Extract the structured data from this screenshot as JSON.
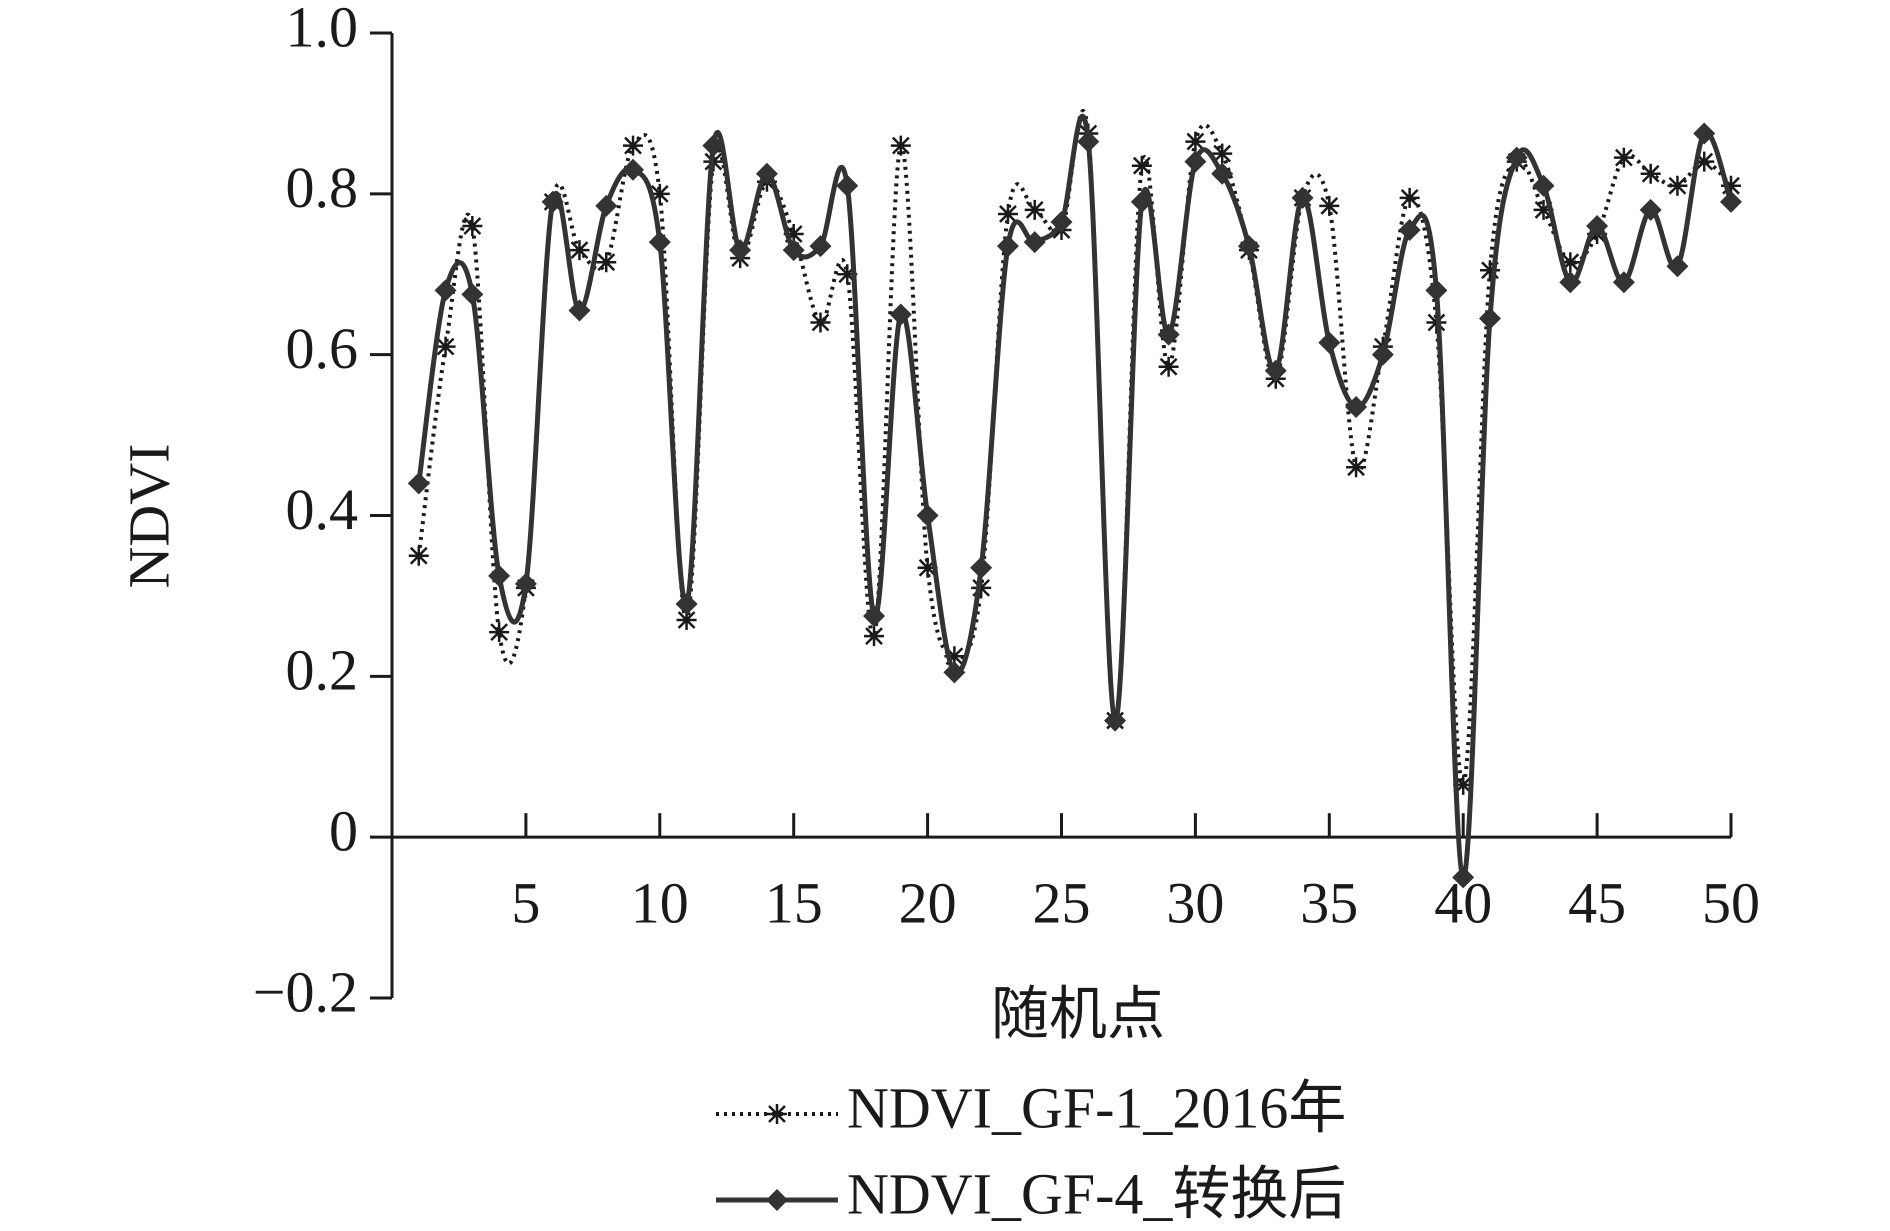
{
  "chart_data": {
    "type": "line",
    "x_label": "随机点",
    "y_label": "NDVI",
    "x": [
      1,
      2,
      3,
      4,
      5,
      6,
      7,
      8,
      9,
      10,
      11,
      12,
      13,
      14,
      15,
      16,
      17,
      18,
      19,
      20,
      21,
      22,
      23,
      24,
      25,
      26,
      27,
      28,
      29,
      30,
      31,
      32,
      33,
      34,
      35,
      36,
      37,
      38,
      39,
      40,
      41,
      42,
      43,
      44,
      45,
      46,
      47,
      48,
      49,
      50
    ],
    "series": [
      {
        "name": "NDVI_GF-1_2016年",
        "color": "#1a1a1a",
        "line_style": "dotted",
        "marker": "asterisk",
        "values": [
          0.35,
          0.61,
          0.76,
          0.255,
          0.31,
          0.79,
          0.73,
          0.715,
          0.86,
          0.8,
          0.27,
          0.84,
          0.72,
          0.815,
          0.75,
          0.64,
          0.7,
          0.25,
          0.86,
          0.335,
          0.225,
          0.31,
          0.775,
          0.78,
          0.755,
          0.875,
          0.145,
          0.835,
          0.585,
          0.865,
          0.85,
          0.73,
          0.57,
          0.795,
          0.785,
          0.46,
          0.61,
          0.795,
          0.64,
          0.065,
          0.705,
          0.84,
          0.78,
          0.715,
          0.75,
          0.845,
          0.825,
          0.81,
          0.84,
          0.81
        ]
      },
      {
        "name": "NDVI_GF-4_转换后",
        "color": "#333333",
        "line_style": "solid",
        "marker": "diamond",
        "values": [
          0.44,
          0.68,
          0.675,
          0.325,
          0.315,
          0.79,
          0.655,
          0.785,
          0.83,
          0.74,
          0.29,
          0.86,
          0.73,
          0.825,
          0.73,
          0.735,
          0.81,
          0.275,
          0.65,
          0.4,
          0.205,
          0.335,
          0.735,
          0.74,
          0.765,
          0.865,
          0.145,
          0.79,
          0.625,
          0.84,
          0.825,
          0.735,
          0.58,
          0.795,
          0.615,
          0.535,
          0.6,
          0.755,
          0.68,
          -0.05,
          0.645,
          0.845,
          0.81,
          0.69,
          0.76,
          0.69,
          0.78,
          0.71,
          0.875,
          0.79
        ]
      }
    ],
    "xlim": [
      0,
      50
    ],
    "xticks": [
      5,
      10,
      15,
      20,
      25,
      30,
      35,
      40,
      45,
      50
    ],
    "ylim": [
      -0.2,
      1
    ],
    "yticks": [
      {
        "value": -0.2,
        "label": "−0.2"
      },
      0,
      0.2,
      0.4,
      0.6,
      0.8,
      {
        "value": 1,
        "label": "1.0"
      }
    ],
    "smooth": true,
    "legend": "bottom"
  }
}
